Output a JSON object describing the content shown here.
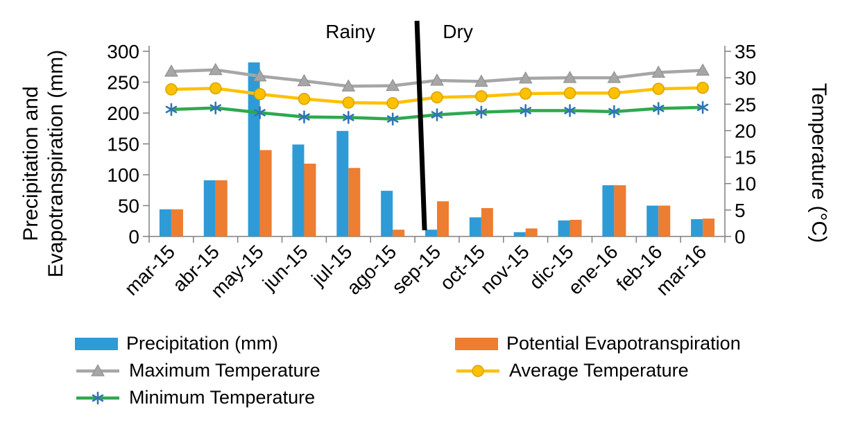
{
  "chart_data": {
    "type": "bar+line combo",
    "categories": [
      "mar-15",
      "abr-15",
      "may-15",
      "jun-15",
      "jul-15",
      "ago-15",
      "sep-15",
      "oct-15",
      "nov-15",
      "dic-15",
      "ene-16",
      "feb-16",
      "mar-16"
    ],
    "bar_series": [
      {
        "name": "Precipitation (mm)",
        "axis": "left",
        "color": "#2E9BD6",
        "values": [
          44,
          91,
          282,
          149,
          171,
          74,
          11,
          31,
          7,
          26,
          83,
          50,
          28
        ]
      },
      {
        "name": "Potential Evapotranspiration",
        "axis": "left",
        "color": "#ED7D31",
        "values": [
          44,
          91,
          140,
          118,
          111,
          11,
          57,
          46,
          13,
          27,
          83,
          50,
          29
        ]
      }
    ],
    "line_series": [
      {
        "name": "Maximum Temperature",
        "axis": "right",
        "color": "#A6A6A6",
        "marker": "triangle",
        "marker_color": "#A6A6A6",
        "values": [
          31.2,
          31.5,
          30.3,
          29.4,
          28.4,
          28.5,
          29.5,
          29.3,
          29.9,
          30.0,
          30.0,
          31.0,
          31.4
        ]
      },
      {
        "name": "Average Temperature",
        "axis": "right",
        "color": "#FFC000",
        "marker": "circle",
        "marker_color": "#FFC000",
        "values": [
          27.8,
          28.0,
          26.9,
          26.0,
          25.3,
          25.2,
          26.3,
          26.5,
          27.0,
          27.1,
          27.1,
          27.9,
          28.1
        ]
      },
      {
        "name": "Minimum Temperature",
        "axis": "right",
        "color": "#2FA84F",
        "marker": "asterisk",
        "marker_color": "#2E75B6",
        "values": [
          24.0,
          24.3,
          23.4,
          22.6,
          22.5,
          22.2,
          23.0,
          23.5,
          23.8,
          23.8,
          23.6,
          24.2,
          24.4
        ]
      }
    ],
    "left_axis": {
      "title": "Precipitation and Evapotranspiration (mm)",
      "min": 0,
      "max": 300,
      "tick_step": 50,
      "ticks": [
        0,
        50,
        100,
        150,
        200,
        250,
        300
      ]
    },
    "right_axis": {
      "title": "Temperature (°C)",
      "min": 0,
      "max": 35,
      "tick_step": 5,
      "ticks": [
        0,
        5,
        10,
        15,
        20,
        25,
        30,
        35
      ]
    },
    "annotations": {
      "rainy_label": "Rainy",
      "dry_label": "Dry",
      "divider_after_category": "ago-15",
      "divider_color": "#000000"
    },
    "legend_position": "bottom",
    "grid": "off"
  }
}
